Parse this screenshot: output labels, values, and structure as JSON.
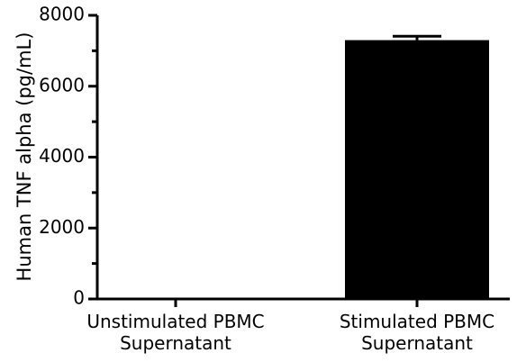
{
  "chart_data": {
    "type": "bar",
    "title": "",
    "xlabel": "",
    "ylabel": "Human TNF alpha (pg/mL)",
    "ylim": [
      0,
      8000
    ],
    "yticks": [
      0,
      2000,
      4000,
      6000,
      8000
    ],
    "grid": false,
    "legend": "none",
    "categories": [
      [
        "Unstimulated PBMC",
        "Supernatant"
      ],
      [
        "Stimulated PBMC",
        "Supernatant"
      ]
    ],
    "values": [
      0,
      7300
    ],
    "errors": [
      0,
      110
    ],
    "bar_color": "#000000"
  }
}
